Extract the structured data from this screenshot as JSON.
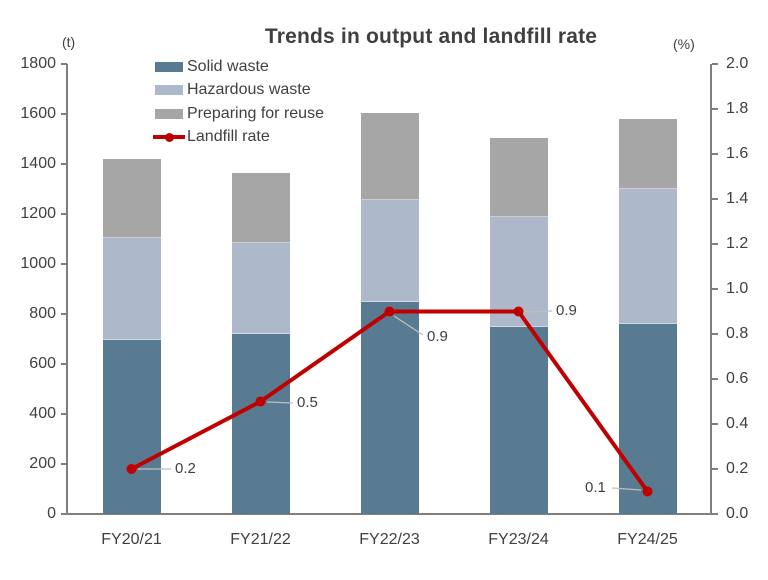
{
  "chart_data": {
    "type": "bar",
    "subtype": "stacked-bars-with-line-overlay",
    "title": "Trends in output and landfill rate",
    "categories": [
      "FY20/21",
      "FY21/22",
      "FY22/23",
      "FY23/24",
      "FY24/25"
    ],
    "series": [
      {
        "name": "Solid waste",
        "kind": "bar-stack",
        "color": "#587b91",
        "axis": "left",
        "values": [
          695,
          720,
          850,
          750,
          760
        ]
      },
      {
        "name": "Hazardous waste",
        "kind": "bar-stack",
        "color": "#adb9ca",
        "axis": "left",
        "values": [
          410,
          365,
          405,
          440,
          540
        ]
      },
      {
        "name": "Preparing for reuse",
        "kind": "bar-stack",
        "color": "#a6a6a6",
        "axis": "left",
        "values": [
          315,
          280,
          350,
          315,
          280
        ]
      },
      {
        "name": "Landfill rate",
        "kind": "line",
        "color": "#c00000",
        "axis": "right",
        "values": [
          0.2,
          0.5,
          0.9,
          0.9,
          0.1
        ]
      }
    ],
    "stack_totals": [
      1420,
      1365,
      1605,
      1505,
      1580
    ],
    "line_point_labels": [
      "0.2",
      "0.5",
      "0.9",
      "0.9",
      "0.1"
    ],
    "left_axis": {
      "unit": "(t)",
      "min": 0,
      "max": 1800,
      "step": 200,
      "tick_labels_top_down": [
        "1800",
        "1600",
        "1400",
        "1200",
        "1000",
        "800",
        "600",
        "400",
        "200",
        "0"
      ]
    },
    "right_axis": {
      "unit": "(%)",
      "min": 0,
      "max": 2.0,
      "step": 0.2,
      "tick_labels_top_down": [
        "2.0",
        "1.8",
        "1.6",
        "1.4",
        "1.2",
        "1.0",
        "0.8",
        "0.6",
        "0.4",
        "0.2",
        "0.0"
      ]
    },
    "legend_position": "top-left",
    "grid": false,
    "colors": {
      "axis": "#7f7f7f",
      "text": "#404040",
      "leader": "#bfbfbf",
      "background": "#ffffff"
    }
  }
}
